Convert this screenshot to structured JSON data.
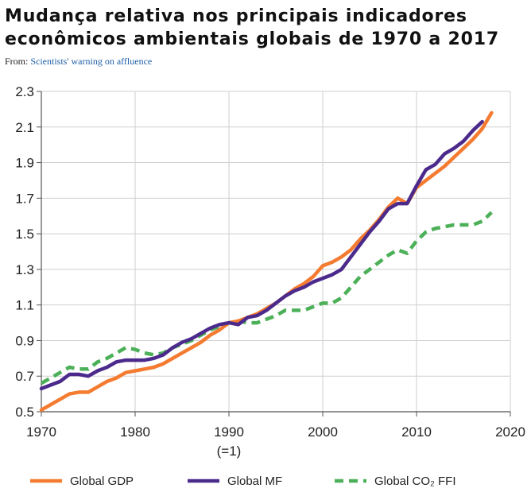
{
  "title": "Mudança relativa nos principais indicadores econômicos ambientais globais de 1970 a 2017",
  "source": {
    "prefix": "From:",
    "link_text": "Scientists' warning on affluence"
  },
  "chart_data": {
    "type": "line",
    "xlim": [
      1970,
      2020
    ],
    "ylim": [
      0.5,
      2.3
    ],
    "x_ticks": [
      1970,
      1980,
      1990,
      2000,
      2010,
      2020
    ],
    "x_tick_labels": [
      "1970",
      "1980",
      "1990",
      "2000",
      "2010",
      "2020"
    ],
    "x_tick_sublabel": "(=1)",
    "y_ticks": [
      0.5,
      0.7,
      0.9,
      1.1,
      1.3,
      1.5,
      1.7,
      1.9,
      2.1,
      2.3
    ],
    "y_tick_labels": [
      "0.5",
      "0.7",
      "0.9",
      "1.1",
      "1.3",
      "1.5",
      "1.7",
      "1.9",
      "2.1",
      "2.3"
    ],
    "grid": true,
    "legend_position": "bottom",
    "series": [
      {
        "name": "Global GDP",
        "color": "#f47b30",
        "style": "solid",
        "x": [
          1970,
          1971,
          1972,
          1973,
          1974,
          1975,
          1976,
          1977,
          1978,
          1979,
          1980,
          1981,
          1982,
          1983,
          1984,
          1985,
          1986,
          1987,
          1988,
          1989,
          1990,
          1991,
          1992,
          1993,
          1994,
          1995,
          1996,
          1997,
          1998,
          1999,
          2000,
          2001,
          2002,
          2003,
          2004,
          2005,
          2006,
          2007,
          2008,
          2009,
          2010,
          2011,
          2012,
          2013,
          2014,
          2015,
          2016,
          2017,
          2018
        ],
        "y": [
          0.51,
          0.54,
          0.57,
          0.6,
          0.61,
          0.61,
          0.64,
          0.67,
          0.69,
          0.72,
          0.73,
          0.74,
          0.75,
          0.77,
          0.8,
          0.83,
          0.86,
          0.89,
          0.93,
          0.96,
          1.0,
          1.01,
          1.03,
          1.05,
          1.08,
          1.11,
          1.15,
          1.19,
          1.22,
          1.26,
          1.32,
          1.34,
          1.37,
          1.41,
          1.47,
          1.52,
          1.58,
          1.65,
          1.7,
          1.67,
          1.76,
          1.8,
          1.84,
          1.88,
          1.93,
          1.98,
          2.03,
          2.09,
          2.18
        ]
      },
      {
        "name": "Global MF",
        "color": "#4b2a8c",
        "style": "solid",
        "x": [
          1970,
          1971,
          1972,
          1973,
          1974,
          1975,
          1976,
          1977,
          1978,
          1979,
          1980,
          1981,
          1982,
          1983,
          1984,
          1985,
          1986,
          1987,
          1988,
          1989,
          1990,
          1991,
          1992,
          1993,
          1994,
          1995,
          1996,
          1997,
          1998,
          1999,
          2000,
          2001,
          2002,
          2003,
          2004,
          2005,
          2006,
          2007,
          2008,
          2009,
          2010,
          2011,
          2012,
          2013,
          2014,
          2015,
          2016,
          2017
        ],
        "y": [
          0.63,
          0.65,
          0.67,
          0.71,
          0.71,
          0.7,
          0.73,
          0.75,
          0.78,
          0.79,
          0.79,
          0.79,
          0.8,
          0.82,
          0.86,
          0.89,
          0.91,
          0.94,
          0.97,
          0.99,
          1.0,
          0.99,
          1.03,
          1.04,
          1.07,
          1.11,
          1.15,
          1.18,
          1.2,
          1.23,
          1.25,
          1.27,
          1.3,
          1.37,
          1.44,
          1.51,
          1.57,
          1.64,
          1.67,
          1.67,
          1.77,
          1.86,
          1.89,
          1.95,
          1.98,
          2.02,
          2.08,
          2.13
        ]
      },
      {
        "name": "Global CO₂ FFI",
        "color": "#4cb058",
        "style": "dashed",
        "x": [
          1970,
          1971,
          1972,
          1973,
          1974,
          1975,
          1976,
          1977,
          1978,
          1979,
          1980,
          1981,
          1982,
          1983,
          1984,
          1985,
          1986,
          1987,
          1988,
          1989,
          1990,
          1991,
          1992,
          1993,
          1994,
          1995,
          1996,
          1997,
          1998,
          1999,
          2000,
          2001,
          2002,
          2003,
          2004,
          2005,
          2006,
          2007,
          2008,
          2009,
          2010,
          2011,
          2012,
          2013,
          2014,
          2015,
          2016,
          2017,
          2018
        ],
        "y": [
          0.66,
          0.69,
          0.72,
          0.75,
          0.74,
          0.74,
          0.78,
          0.8,
          0.83,
          0.86,
          0.85,
          0.83,
          0.82,
          0.83,
          0.86,
          0.88,
          0.9,
          0.93,
          0.96,
          0.98,
          1.0,
          1.01,
          1.0,
          1.0,
          1.02,
          1.04,
          1.07,
          1.07,
          1.07,
          1.09,
          1.11,
          1.11,
          1.14,
          1.2,
          1.26,
          1.3,
          1.34,
          1.38,
          1.41,
          1.39,
          1.46,
          1.51,
          1.53,
          1.54,
          1.55,
          1.55,
          1.55,
          1.57,
          1.62
        ]
      }
    ]
  }
}
